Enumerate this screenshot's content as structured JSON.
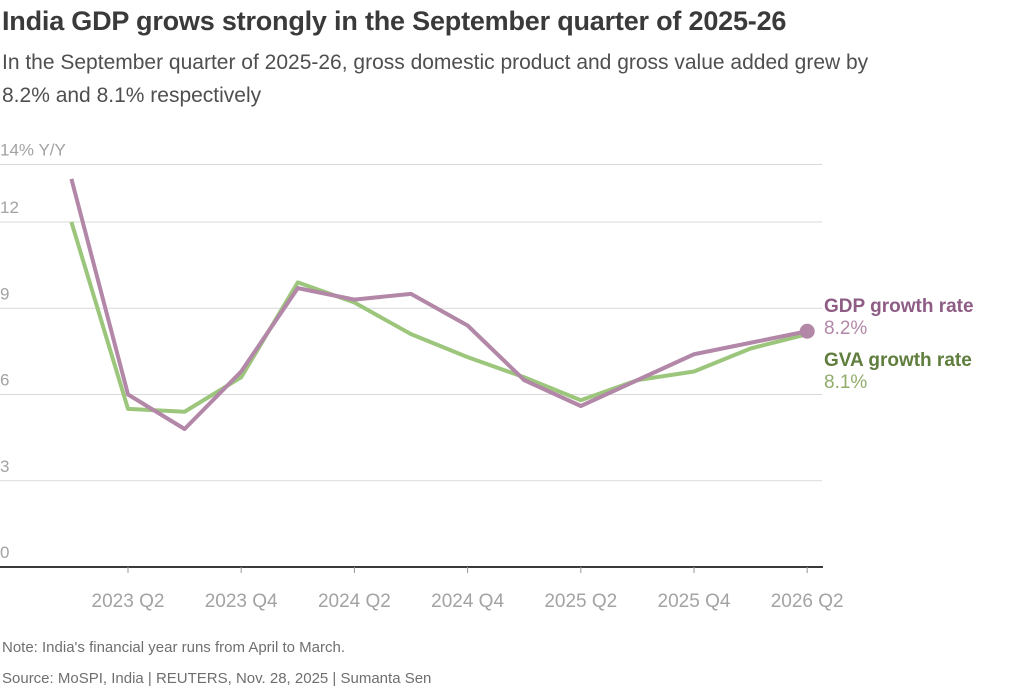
{
  "header": {
    "title": "India GDP grows strongly in the September quarter of 2025-26",
    "subtitle_lines": [
      "In the September quarter of 2025-26, gross domestic product and gross value added grew by",
      "8.2% and 8.1% respectively"
    ]
  },
  "chart_data": {
    "type": "line",
    "unit": "% Y/Y",
    "x": [
      "2023 Q1",
      "2023 Q2",
      "2023 Q3",
      "2023 Q4",
      "2024 Q1",
      "2024 Q2",
      "2024 Q3",
      "2024 Q4",
      "2025 Q1",
      "2025 Q2",
      "2025 Q3",
      "2025 Q4",
      "2026 Q1",
      "2026 Q2"
    ],
    "series": [
      {
        "name": "GDP growth rate",
        "latest_label": "8.2%",
        "color": "#b287a8",
        "name_color": "#8e5c85",
        "value_color": "#b287a8",
        "end_dot": true,
        "values": [
          13.5,
          6.0,
          4.8,
          6.8,
          9.7,
          9.3,
          9.5,
          8.4,
          6.5,
          5.6,
          6.5,
          7.4,
          7.8,
          8.2
        ]
      },
      {
        "name": "GVA growth rate",
        "latest_label": "8.1%",
        "color": "#9cc67c",
        "name_color": "#607e3e",
        "value_color": "#90ad6b",
        "end_dot": false,
        "values": [
          12.0,
          5.5,
          5.4,
          6.6,
          9.9,
          9.2,
          8.1,
          7.3,
          6.6,
          5.8,
          6.5,
          6.8,
          7.6,
          8.1
        ]
      }
    ],
    "yticks": [
      {
        "value": 14,
        "label": "14% Y/Y"
      },
      {
        "value": 12,
        "label": "12"
      },
      {
        "value": 9,
        "label": "9"
      },
      {
        "value": 6,
        "label": "6"
      },
      {
        "value": 3,
        "label": "3"
      },
      {
        "value": 0,
        "label": "0"
      }
    ],
    "xticks": [
      {
        "index": 1,
        "label": "2023 Q2"
      },
      {
        "index": 3,
        "label": "2023 Q4"
      },
      {
        "index": 5,
        "label": "2024 Q2"
      },
      {
        "index": 7,
        "label": "2024 Q4"
      },
      {
        "index": 9,
        "label": "2025 Q2"
      },
      {
        "index": 11,
        "label": "2025 Q4"
      },
      {
        "index": 13,
        "label": "2026 Q2"
      }
    ],
    "ylim": [
      0,
      14
    ],
    "grid": "horizontal",
    "legend_position": "right-end-labels",
    "colors": {
      "grid": "#d9d9d9",
      "axis": "#3a3a3a",
      "tick": "#999999",
      "axis_label": "#a3a3a3"
    }
  },
  "footer": {
    "note": "Note: India's financial year runs from April to March.",
    "source": "Source: MoSPI, India | REUTERS, Nov. 28, 2025 | Sumanta Sen"
  }
}
